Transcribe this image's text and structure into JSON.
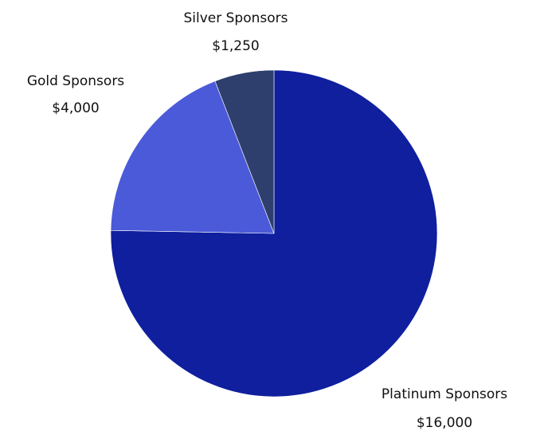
{
  "chart_data": {
    "type": "pie",
    "categories": [
      "Platinum Sponsors",
      "Gold Sponsors",
      "Silver Sponsors"
    ],
    "values": [
      16000,
      4000,
      1250
    ],
    "value_labels": [
      "$16,000",
      "$4,000",
      "$1,250"
    ],
    "colors": [
      "#0f1f9e",
      "#4a5ad8",
      "#2e3f6e"
    ],
    "legend": "none"
  }
}
